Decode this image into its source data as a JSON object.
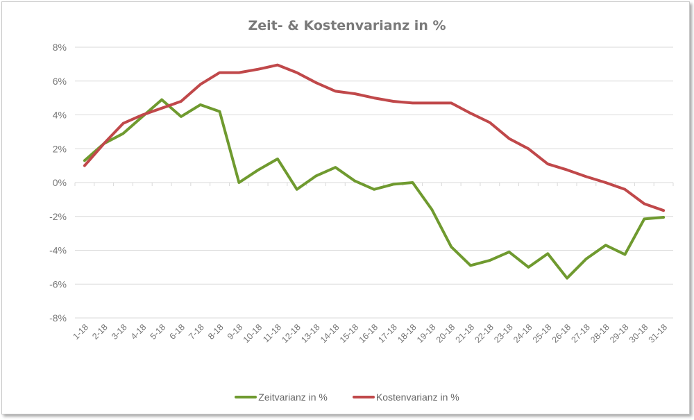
{
  "chart_data": {
    "type": "line",
    "title": "Zeit- & Kostenvarianz in %",
    "xlabel": "",
    "ylabel": "",
    "ylim": [
      -8,
      8
    ],
    "yticks": [
      "8%",
      "6%",
      "4%",
      "2%",
      "0%",
      "-2%",
      "-4%",
      "-6%",
      "-8%"
    ],
    "grid": true,
    "legend_position": "bottom",
    "categories": [
      "1-18",
      "2-18",
      "3-18",
      "4-18",
      "5-18",
      "6-18",
      "7-18",
      "8-18",
      "9-18",
      "10-18",
      "11-18",
      "12-18",
      "13-18",
      "14-18",
      "15-18",
      "16-18",
      "17-18",
      "18-18",
      "19-18",
      "20-18",
      "21-18",
      "22-18",
      "23-18",
      "24-18",
      "25-18",
      "26-18",
      "27-18",
      "28-18",
      "29-18",
      "30-18",
      "31-18"
    ],
    "series": [
      {
        "name": "Zeitvarianz in %",
        "color": "#6f9a2f",
        "values": [
          1.3,
          2.3,
          2.9,
          3.9,
          4.9,
          3.9,
          4.6,
          4.2,
          0.0,
          0.75,
          1.4,
          -0.4,
          0.4,
          0.9,
          0.1,
          -0.4,
          -0.1,
          0.0,
          -1.6,
          -3.8,
          -4.9,
          -4.6,
          -4.1,
          -5.0,
          -4.2,
          -5.65,
          -4.5,
          -3.7,
          -4.25,
          -2.15,
          -2.05
        ]
      },
      {
        "name": "Kostenvarianz in %",
        "color": "#c0484a",
        "values": [
          1.0,
          2.3,
          3.5,
          4.0,
          4.4,
          4.8,
          5.8,
          6.5,
          6.5,
          6.7,
          6.95,
          6.5,
          5.9,
          5.4,
          5.25,
          5.0,
          4.8,
          4.7,
          4.7,
          4.7,
          4.1,
          3.55,
          2.6,
          2.0,
          1.1,
          0.75,
          0.35,
          0.0,
          -0.4,
          -1.25,
          -1.65
        ]
      }
    ]
  },
  "legend": {
    "items": [
      {
        "label": "Zeitvarianz in %",
        "color": "#6f9a2f"
      },
      {
        "label": "Kostenvarianz in %",
        "color": "#c0484a"
      }
    ]
  }
}
